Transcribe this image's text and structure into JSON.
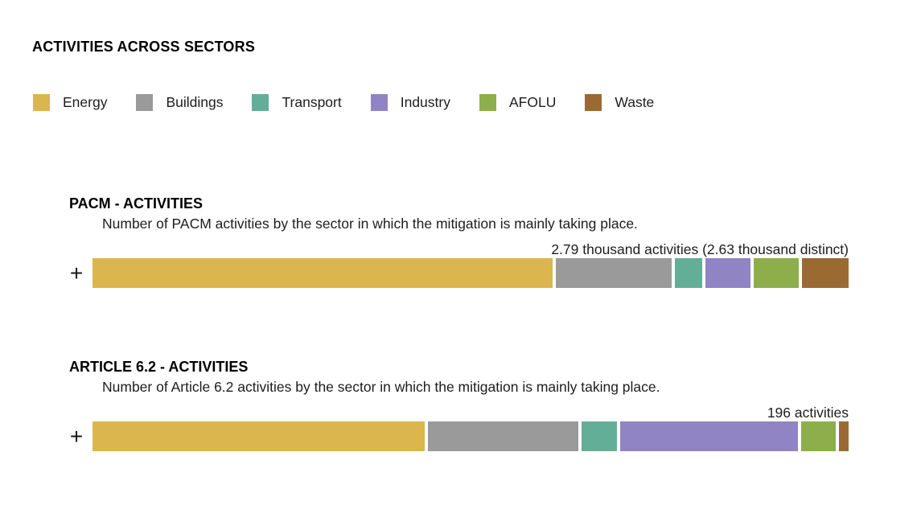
{
  "title": "ACTIVITIES ACROSS SECTORS",
  "legend": {
    "items": [
      {
        "label": "Energy",
        "color": "#DBB54E"
      },
      {
        "label": "Buildings",
        "color": "#9A9A9A"
      },
      {
        "label": "Transport",
        "color": "#63AE97"
      },
      {
        "label": "Industry",
        "color": "#9184C5"
      },
      {
        "label": "AFOLU",
        "color": "#8DAE4B"
      },
      {
        "label": "Waste",
        "color": "#9B6A32"
      }
    ]
  },
  "sections": [
    {
      "heading": "PACM - ACTIVITIES",
      "subtitle": "Number of PACM activities by the sector in which the mitigation is mainly taking place.",
      "total_label": "2.79 thousand activities (2.63 thousand distinct)",
      "expand_label": "+",
      "segments": [
        {
          "sector": "Energy",
          "flex": 573
        },
        {
          "sector": "Buildings",
          "flex": 144
        },
        {
          "sector": "Transport",
          "flex": 34
        },
        {
          "sector": "Industry",
          "flex": 56
        },
        {
          "sector": "AFOLU",
          "flex": 56
        },
        {
          "sector": "Waste",
          "flex": 58
        }
      ]
    },
    {
      "heading": "ARTICLE 6.2 - ACTIVITIES",
      "subtitle": "Number of Article 6.2 activities by the sector in which the mitigation is mainly taking place.",
      "total_label": "196 activities",
      "expand_label": "+",
      "segments": [
        {
          "sector": "Energy",
          "flex": 411
        },
        {
          "sector": "Buildings",
          "flex": 186
        },
        {
          "sector": "Transport",
          "flex": 44
        },
        {
          "sector": "Industry",
          "flex": 220
        },
        {
          "sector": "AFOLU",
          "flex": 43
        },
        {
          "sector": "Waste",
          "flex": 12
        }
      ]
    }
  ],
  "chart_data": [
    {
      "type": "bar",
      "stacked": true,
      "orientation": "horizontal",
      "title": "PACM - ACTIVITIES",
      "subtitle": "Number of PACM activities by the sector in which the mitigation is mainly taking place.",
      "total_label": "2.79 thousand activities (2.63 thousand distinct)",
      "total_activities": 2790,
      "distinct_activities": 2630,
      "categories": [
        "Energy",
        "Buildings",
        "Transport",
        "Industry",
        "AFOLU",
        "Waste"
      ],
      "share_pct_estimated": [
        62.2,
        15.6,
        3.7,
        6.1,
        6.1,
        6.3
      ],
      "values_estimated": [
        1736,
        436,
        103,
        170,
        170,
        176
      ],
      "legend_position": "top",
      "grid": false,
      "axes_labeled": false
    },
    {
      "type": "bar",
      "stacked": true,
      "orientation": "horizontal",
      "title": "ARTICLE 6.2 - ACTIVITIES",
      "subtitle": "Number of Article 6.2 activities by the sector in which the mitigation is mainly taking place.",
      "total_label": "196 activities",
      "total_activities": 196,
      "categories": [
        "Energy",
        "Buildings",
        "Transport",
        "Industry",
        "AFOLU",
        "Waste"
      ],
      "share_pct_estimated": [
        44.9,
        20.3,
        4.8,
        24.0,
        4.7,
        1.3
      ],
      "values_estimated": [
        88,
        40,
        9,
        47,
        9,
        3
      ],
      "legend_position": "top",
      "grid": false,
      "axes_labeled": false
    }
  ]
}
